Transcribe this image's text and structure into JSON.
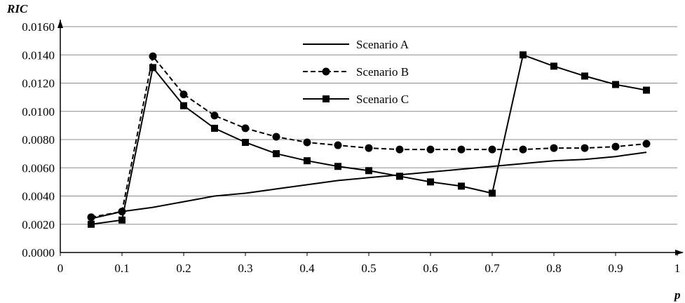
{
  "chart_data": {
    "type": "line",
    "title": "",
    "xlabel": "p",
    "ylabel": "RIC",
    "xlim": [
      0,
      1
    ],
    "ylim": [
      0,
      0.016
    ],
    "x_ticks": [
      "0",
      "0.1",
      "0.2",
      "0.3",
      "0.4",
      "0.5",
      "0.6",
      "0.7",
      "0.8",
      "0.9",
      "1"
    ],
    "y_ticks": [
      "0.0000",
      "0.0020",
      "0.0040",
      "0.0060",
      "0.0080",
      "0.0100",
      "0.0120",
      "0.0140",
      "0.0160"
    ],
    "grid": "horizontal",
    "legend_position": "top-center",
    "series": [
      {
        "name": "Scenario A",
        "line": "solid",
        "marker": "none",
        "color": "#000000",
        "x": [
          0.05,
          0.1,
          0.15,
          0.2,
          0.25,
          0.3,
          0.35,
          0.4,
          0.45,
          0.5,
          0.55,
          0.6,
          0.65,
          0.7,
          0.75,
          0.8,
          0.85,
          0.9,
          0.95
        ],
        "y": [
          0.0024,
          0.0029,
          0.0032,
          0.0036,
          0.004,
          0.0042,
          0.0045,
          0.0048,
          0.0051,
          0.0053,
          0.0055,
          0.0057,
          0.0059,
          0.0061,
          0.0063,
          0.0065,
          0.0066,
          0.0068,
          0.0071
        ]
      },
      {
        "name": "Scenario B",
        "line": "dashed",
        "marker": "circle",
        "color": "#000000",
        "x": [
          0.05,
          0.1,
          0.15,
          0.2,
          0.25,
          0.3,
          0.35,
          0.4,
          0.45,
          0.5,
          0.55,
          0.6,
          0.65,
          0.7,
          0.75,
          0.8,
          0.85,
          0.9,
          0.95
        ],
        "y": [
          0.0025,
          0.0029,
          0.0139,
          0.0112,
          0.0097,
          0.0088,
          0.0082,
          0.0078,
          0.0076,
          0.0074,
          0.0073,
          0.0073,
          0.0073,
          0.0073,
          0.0073,
          0.0074,
          0.0074,
          0.0075,
          0.0077
        ]
      },
      {
        "name": "Scenario C",
        "line": "solid",
        "marker": "square",
        "color": "#000000",
        "x": [
          0.05,
          0.1,
          0.15,
          0.2,
          0.25,
          0.3,
          0.35,
          0.4,
          0.45,
          0.5,
          0.55,
          0.6,
          0.65,
          0.7,
          0.75,
          0.8,
          0.85,
          0.9,
          0.95
        ],
        "y": [
          0.002,
          0.0023,
          0.0131,
          0.0104,
          0.0088,
          0.0078,
          0.007,
          0.0065,
          0.0061,
          0.0058,
          0.0054,
          0.005,
          0.0047,
          0.0042,
          0.014,
          0.0132,
          0.0125,
          0.0119,
          0.0115
        ]
      }
    ]
  }
}
